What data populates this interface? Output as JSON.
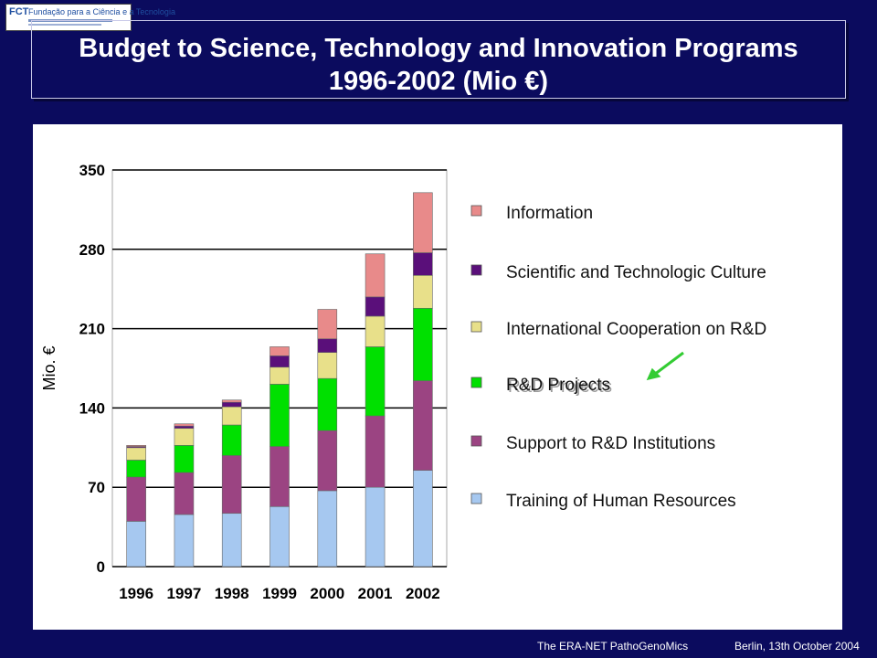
{
  "header": {
    "logo": {
      "mark": "FCT",
      "text": "Fundação para a Ciência e a Tecnologia"
    },
    "title_line1": "Budget to Science, Technology and Innovation Programs",
    "title_line2": "1996-2002 (Mio €)"
  },
  "chart_data": {
    "type": "bar",
    "stacked": true,
    "categories": [
      "1996",
      "1997",
      "1998",
      "1999",
      "2000",
      "2001",
      "2002"
    ],
    "ylabel": "Mio. €",
    "ylim": [
      0,
      350
    ],
    "yticks": [
      0,
      70,
      140,
      210,
      280,
      350
    ],
    "grid": true,
    "legend_position": "right",
    "series": [
      {
        "name": "Training of Human Resources",
        "color": "#a6c8f0",
        "values": [
          40,
          46,
          47,
          53,
          67,
          70,
          85
        ]
      },
      {
        "name": "Support to R&D Institutions",
        "color": "#9b4482",
        "values": [
          39,
          37,
          51,
          53,
          53,
          63,
          79
        ]
      },
      {
        "name": "R&D Projects",
        "color": "#00e000",
        "values": [
          15,
          24,
          27,
          55,
          46,
          61,
          64
        ]
      },
      {
        "name": "International Cooperation on R&D",
        "color": "#e8e08a",
        "values": [
          11,
          15,
          16,
          15,
          23,
          27,
          29
        ]
      },
      {
        "name": "Scientific and Technologic Culture",
        "color": "#5a0f7a",
        "values": [
          1,
          2,
          4,
          10,
          12,
          17,
          20
        ]
      },
      {
        "name": "Information",
        "color": "#e88a8a",
        "values": [
          1,
          2,
          2,
          8,
          26,
          38,
          53
        ]
      }
    ]
  },
  "annotation": {
    "arrow_color": "#33cc33"
  },
  "footer": {
    "left": "The ERA-NET PathoGenoMics",
    "right": "Berlin, 13th October 2004"
  }
}
